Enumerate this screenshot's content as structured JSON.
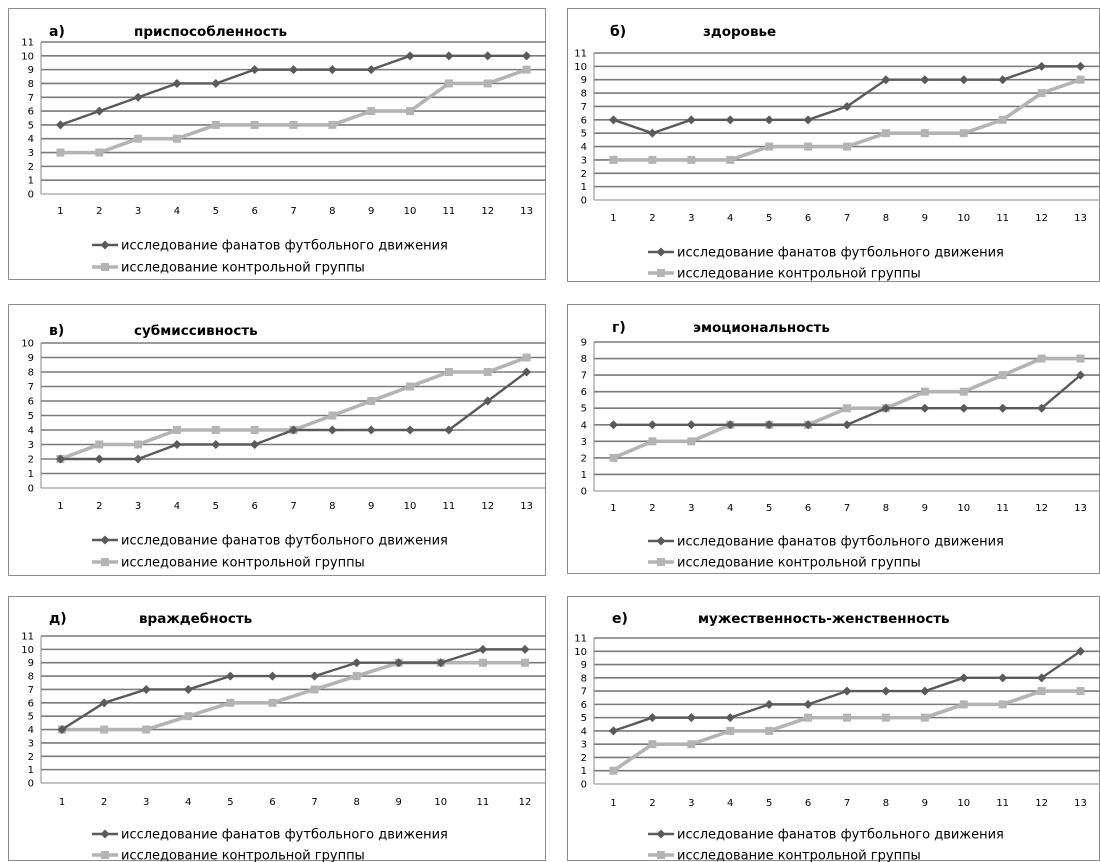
{
  "colors": {
    "fans": "#5a5a5a",
    "control": "#b4b4b4",
    "grid": "#7a7a7a",
    "frame": "#8c8c8c"
  },
  "legend": {
    "fans": "исследование фанатов футбольного движения",
    "control": "исследование контрольной группы"
  },
  "chart_data": [
    {
      "type": "line",
      "letter": "а)",
      "title": "приспособленность",
      "xlabel": "",
      "ylabel": "",
      "ylim": [
        0,
        11
      ],
      "grid": true,
      "legend_position": "bottom",
      "x": [
        1,
        2,
        3,
        4,
        5,
        6,
        7,
        8,
        9,
        10,
        11,
        12,
        13
      ],
      "series": [
        {
          "name": "исследование фанатов футбольного движения",
          "values": [
            5,
            6,
            7,
            8,
            8,
            9,
            9,
            9,
            9,
            10,
            10,
            10,
            10
          ]
        },
        {
          "name": "исследование контрольной группы",
          "values": [
            3,
            3,
            4,
            4,
            5,
            5,
            5,
            5,
            6,
            6,
            8,
            8,
            9
          ]
        }
      ]
    },
    {
      "type": "line",
      "letter": "б)",
      "title": "здоровье",
      "xlabel": "",
      "ylabel": "",
      "ylim": [
        0,
        11
      ],
      "grid": true,
      "legend_position": "bottom",
      "x": [
        1,
        2,
        3,
        4,
        5,
        6,
        7,
        8,
        9,
        10,
        11,
        12,
        13
      ],
      "series": [
        {
          "name": "исследование фанатов футбольного движения",
          "values": [
            6,
            5,
            6,
            6,
            6,
            6,
            7,
            9,
            9,
            9,
            9,
            10,
            10
          ]
        },
        {
          "name": "исследование контрольной группы",
          "values": [
            3,
            3,
            3,
            3,
            4,
            4,
            4,
            5,
            5,
            5,
            6,
            8,
            9
          ]
        }
      ]
    },
    {
      "type": "line",
      "letter": "в)",
      "title": "субмиссивность",
      "xlabel": "",
      "ylabel": "",
      "ylim": [
        0,
        10
      ],
      "grid": true,
      "legend_position": "bottom",
      "x": [
        1,
        2,
        3,
        4,
        5,
        6,
        7,
        8,
        9,
        10,
        11,
        12,
        13
      ],
      "series": [
        {
          "name": "исследование фанатов футбольного движения",
          "values": [
            2,
            2,
            2,
            3,
            3,
            3,
            4,
            4,
            4,
            4,
            4,
            6,
            8
          ]
        },
        {
          "name": "исследование контрольной группы",
          "values": [
            2,
            3,
            3,
            4,
            4,
            4,
            4,
            5,
            6,
            7,
            8,
            8,
            9
          ]
        }
      ]
    },
    {
      "type": "line",
      "letter": "г)",
      "title": "эмоциональность",
      "xlabel": "",
      "ylabel": "",
      "ylim": [
        0,
        9
      ],
      "grid": true,
      "legend_position": "bottom",
      "x": [
        1,
        2,
        3,
        4,
        5,
        6,
        7,
        8,
        9,
        10,
        11,
        12,
        13
      ],
      "series": [
        {
          "name": "исследование фанатов футбольного движения",
          "values": [
            4,
            4,
            4,
            4,
            4,
            4,
            4,
            5,
            5,
            5,
            5,
            5,
            7
          ]
        },
        {
          "name": "исследование контрольной группы",
          "values": [
            2,
            3,
            3,
            4,
            4,
            4,
            5,
            5,
            6,
            6,
            7,
            8,
            8
          ]
        }
      ]
    },
    {
      "type": "line",
      "letter": "д)",
      "title": "враждебность",
      "xlabel": "",
      "ylabel": "",
      "ylim": [
        0,
        11
      ],
      "grid": true,
      "legend_position": "bottom",
      "x": [
        1,
        2,
        3,
        4,
        5,
        6,
        7,
        8,
        9,
        10,
        11,
        12
      ],
      "series": [
        {
          "name": "исследование фанатов футбольного движения",
          "values": [
            4,
            6,
            7,
            7,
            8,
            8,
            8,
            9,
            9,
            9,
            10,
            10
          ]
        },
        {
          "name": "исследование контрольной группы",
          "values": [
            4,
            4,
            4,
            5,
            6,
            6,
            7,
            8,
            9,
            9,
            9,
            9
          ]
        }
      ]
    },
    {
      "type": "line",
      "letter": "е)",
      "title": "мужественность-женственность",
      "xlabel": "",
      "ylabel": "",
      "ylim": [
        0,
        11
      ],
      "grid": true,
      "legend_position": "bottom",
      "x": [
        1,
        2,
        3,
        4,
        5,
        6,
        7,
        8,
        9,
        10,
        11,
        12,
        13
      ],
      "series": [
        {
          "name": "исследование фанатов футбольного движения",
          "values": [
            4,
            5,
            5,
            5,
            6,
            6,
            7,
            7,
            7,
            8,
            8,
            8,
            10
          ]
        },
        {
          "name": "исследование контрольной группы",
          "values": [
            1,
            3,
            3,
            4,
            4,
            5,
            5,
            5,
            5,
            6,
            6,
            7,
            7
          ]
        }
      ]
    }
  ]
}
